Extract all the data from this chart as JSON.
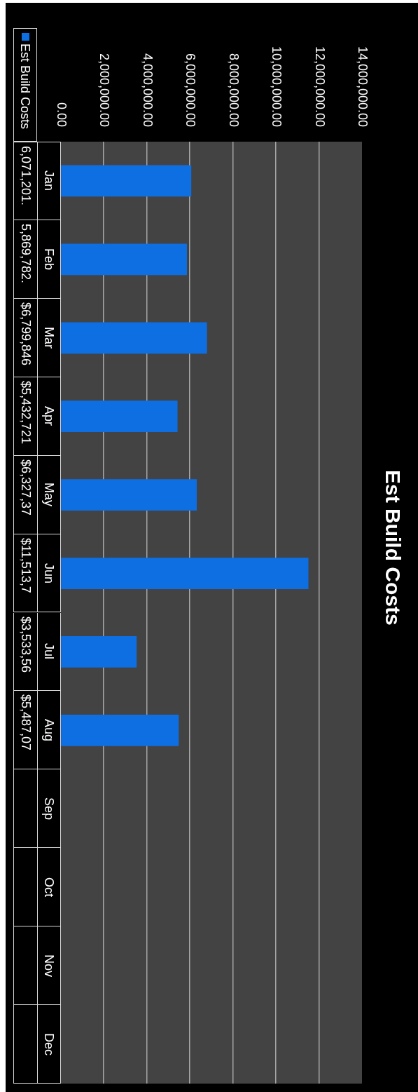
{
  "chart_data": {
    "type": "bar",
    "orientation": "horizontal",
    "title": "Est Build Costs",
    "categories": [
      "Jan",
      "Feb",
      "Mar",
      "Apr",
      "May",
      "Jun",
      "Jul",
      "Aug",
      "Sep",
      "Oct",
      "Nov",
      "Dec"
    ],
    "series": [
      {
        "name": "Est Build Costs",
        "color": "#0e6fe3",
        "values": [
          6071201,
          5869782,
          6799846,
          5432721,
          6327370,
          11513700,
          3533560,
          5487070,
          null,
          null,
          null,
          null
        ],
        "value_labels": [
          "6,071,201.",
          "5,869,782.",
          "$6,799,846",
          "$5,432,721",
          "$6,327,37",
          "$11,513,7",
          "$3,533,56",
          "$5,487,07",
          null,
          null,
          null,
          null
        ]
      }
    ],
    "xlim": [
      0,
      14000000
    ],
    "xticks": [
      {
        "value": 0,
        "label": "0.00"
      },
      {
        "value": 2000000,
        "label": "2,000,000.00"
      },
      {
        "value": 4000000,
        "label": "4,000,000.00"
      },
      {
        "value": 6000000,
        "label": "6,000,000.00"
      },
      {
        "value": 8000000,
        "label": "8,000,000.00"
      },
      {
        "value": 10000000,
        "label": "10,000,000.00"
      },
      {
        "value": 12000000,
        "label": "12,000,000.00"
      },
      {
        "value": 14000000,
        "label": "14,000,000.00"
      }
    ],
    "grid": "x",
    "legend": "top left"
  }
}
